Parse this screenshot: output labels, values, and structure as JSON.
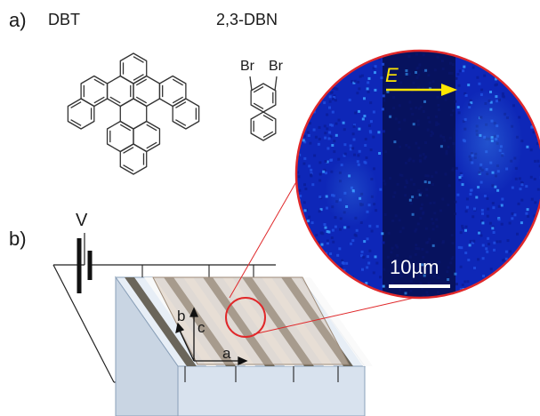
{
  "panel_a": {
    "label": "a)",
    "molecule_1": "DBT",
    "molecule_2": "2,3-DBN",
    "substituent_1": "Br",
    "substituent_2": "Br"
  },
  "panel_b": {
    "label": "b)",
    "voltage": "V",
    "axis_a": "a",
    "axis_b": "b",
    "axis_c": "c"
  },
  "inset": {
    "field_label": "E",
    "scale_bar": "10µm"
  },
  "colors": {
    "inset_border": "#e0282a",
    "arrow": "#ffe600",
    "electrode": "#6a655a",
    "crystal": "#d8c8b8"
  }
}
